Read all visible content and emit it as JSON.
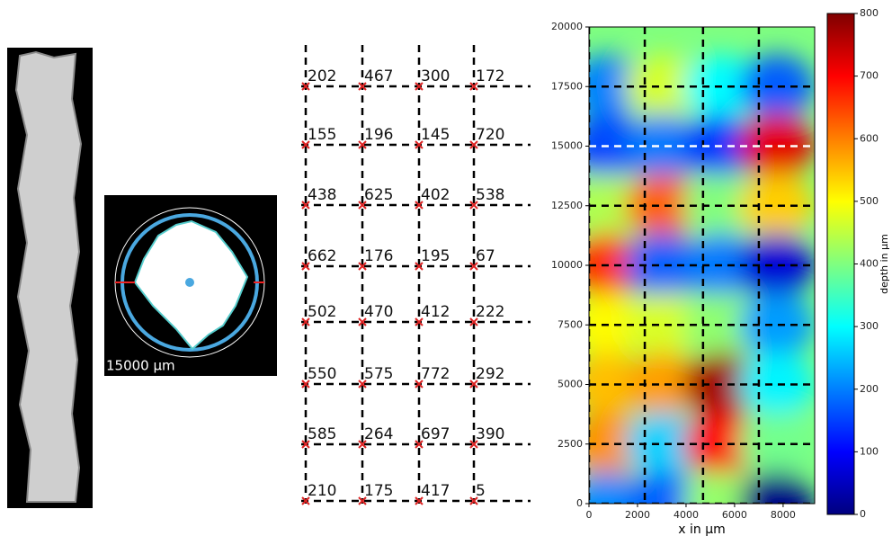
{
  "cross_section": {
    "label": "15000 µm"
  },
  "grid_table": {
    "rows": [
      [
        202,
        467,
        300,
        172
      ],
      [
        155,
        196,
        145,
        720
      ],
      [
        438,
        625,
        402,
        538
      ],
      [
        662,
        176,
        195,
        67
      ],
      [
        502,
        470,
        412,
        222
      ],
      [
        550,
        575,
        772,
        292
      ],
      [
        585,
        264,
        697,
        390
      ],
      [
        210,
        175,
        417,
        5
      ]
    ]
  },
  "chart_data": {
    "type": "heatmap",
    "xlabel": "x in µm",
    "xlim": [
      0,
      9300
    ],
    "ylim": [
      0,
      20000
    ],
    "xticks": [
      0,
      2000,
      4000,
      6000,
      8000
    ],
    "yticks": [
      0,
      2500,
      5000,
      7500,
      10000,
      12500,
      15000,
      17500,
      20000
    ],
    "grid_x": [
      0,
      2300,
      4700,
      7000
    ],
    "grid_y": [
      17500,
      15000,
      12500,
      10000,
      7500,
      5000,
      2500,
      0
    ],
    "highlight_y": 15000,
    "colorbar": {
      "label": "depth in µm",
      "lim": [
        0,
        800
      ],
      "ticks": [
        0,
        100,
        200,
        300,
        400,
        500,
        600,
        700,
        800
      ],
      "colormap": "jet"
    }
  }
}
